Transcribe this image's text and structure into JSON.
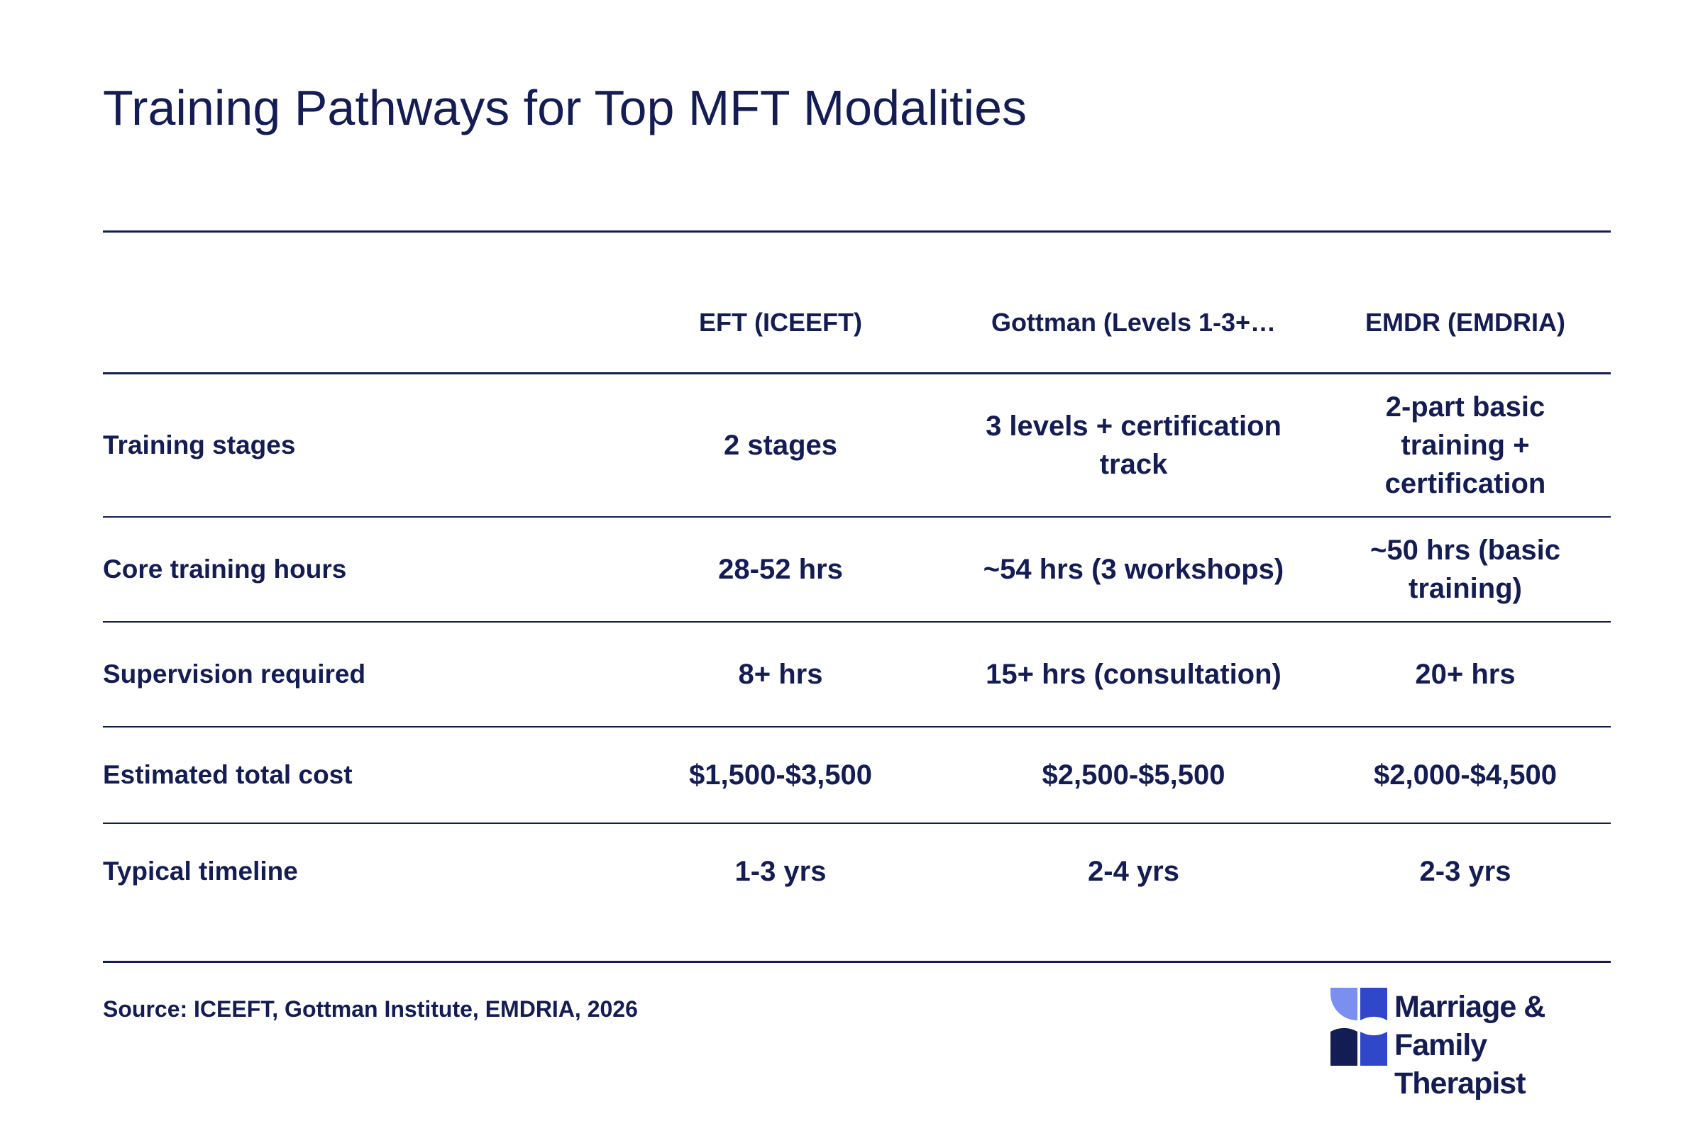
{
  "title": "Training Pathways for Top MFT Modalities",
  "source": "Source: ICEEFT, Gottman Institute, EMDRIA, 2026",
  "brand": {
    "line1": "Marriage & Family",
    "line2": "Therapist",
    "colors": {
      "light": "#7b8ff0",
      "mid": "#2f47c8",
      "dark": "#141c54"
    }
  },
  "chart_data": {
    "type": "table",
    "title": "Training Pathways for Top MFT Modalities",
    "columns": [
      "",
      "EFT (ICEEFT)",
      "Gottman (Levels 1-3+…",
      "EMDR (EMDRIA)"
    ],
    "rows": [
      {
        "label": "Training stages",
        "values": [
          "2 stages",
          "3 levels + certification track",
          "2-part basic training + certification"
        ]
      },
      {
        "label": "Core training hours",
        "values": [
          "28-52 hrs",
          "~54 hrs (3 workshops)",
          "~50 hrs (basic training)"
        ]
      },
      {
        "label": "Supervision required",
        "values": [
          "8+ hrs",
          "15+ hrs (consultation)",
          "20+ hrs"
        ]
      },
      {
        "label": "Estimated total cost",
        "values": [
          "$1,500-$3,500",
          "$2,500-$5,500",
          "$2,000-$4,500"
        ]
      },
      {
        "label": "Typical timeline",
        "values": [
          "1-3 yrs",
          "2-4 yrs",
          "2-3 yrs"
        ]
      }
    ]
  }
}
